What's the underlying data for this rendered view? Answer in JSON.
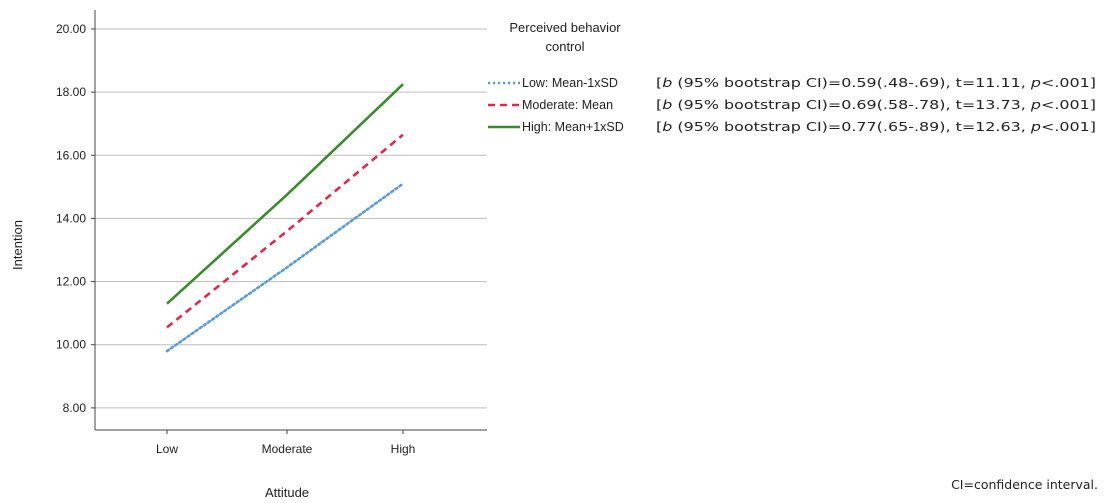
{
  "chart_data": {
    "type": "line",
    "categories": [
      "Low",
      "Moderate",
      "High"
    ],
    "xlabel": "Attitude",
    "ylabel": "Intention",
    "ylim": [
      7.3,
      20.6
    ],
    "yticks": [
      "8.00",
      "10.00",
      "12.00",
      "14.00",
      "16.00",
      "18.00",
      "20.00"
    ],
    "grid": "horizontal",
    "legend_title": "Perceived behavior control",
    "legend_position": "right",
    "series": [
      {
        "name": "Low: Mean-1xSD",
        "values": [
          9.8,
          12.45,
          15.1
        ],
        "color": "#5b9bd5",
        "style": "dotted",
        "stat": {
          "b_prefix": "[",
          "b": "b",
          "rest": " (95% bootstrap  CI)=0.59(.48-.69),  t=11.11,  ",
          "p": "p",
          "p_rest": "<.001]"
        }
      },
      {
        "name": "Moderate: Mean",
        "values": [
          10.55,
          13.6,
          16.65
        ],
        "color": "#e0284a",
        "style": "dashed",
        "stat": {
          "b_prefix": "[",
          "b": "b",
          "rest": " (95% bootstrap  CI)=0.69(.58-.78),  t=13.73,  ",
          "p": "p",
          "p_rest": "<.001]"
        }
      },
      {
        "name": "High: Mean+1xSD",
        "values": [
          11.3,
          14.75,
          18.25
        ],
        "color": "#3a8a2e",
        "style": "solid",
        "stat": {
          "b_prefix": "[",
          "b": "b",
          "rest": " (95% bootstrap  CI)=0.77(.65-.89),  t=12.63,  ",
          "p": "p",
          "p_rest": "<.001]"
        }
      }
    ],
    "note": "CI=confidence interval."
  }
}
